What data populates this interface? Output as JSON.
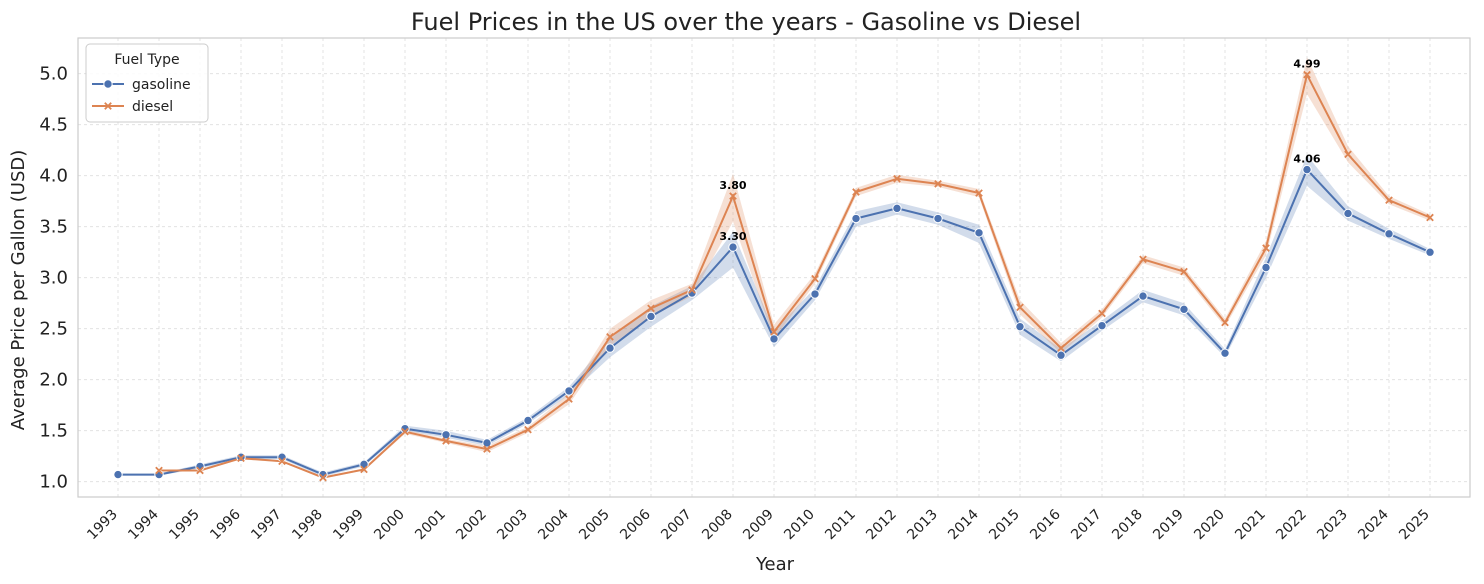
{
  "chart_data": {
    "type": "line",
    "title": "Fuel Prices in the US over the years - Gasoline vs Diesel",
    "xlabel": "Year",
    "ylabel": "Average Price per Gallon (USD)",
    "ylim": [
      0.85,
      5.35
    ],
    "yticks": [
      1.0,
      1.5,
      2.0,
      2.5,
      3.0,
      3.5,
      4.0,
      4.5,
      5.0
    ],
    "grid": true,
    "legend": {
      "title": "Fuel Type",
      "placement": "top-left"
    },
    "x": [
      1993,
      1994,
      1995,
      1996,
      1997,
      1998,
      1999,
      2000,
      2001,
      2002,
      2003,
      2004,
      2005,
      2006,
      2007,
      2008,
      2009,
      2010,
      2011,
      2012,
      2013,
      2014,
      2015,
      2016,
      2017,
      2018,
      2019,
      2020,
      2021,
      2022,
      2023,
      2024,
      2025
    ],
    "series": [
      {
        "name": "gasoline",
        "color": "#4c72b0",
        "marker": "circle",
        "values": [
          1.07,
          1.07,
          1.15,
          1.24,
          1.24,
          1.07,
          1.17,
          1.52,
          1.46,
          1.38,
          1.6,
          1.89,
          2.31,
          2.62,
          2.85,
          3.3,
          2.4,
          2.84,
          3.58,
          3.68,
          3.58,
          3.44,
          2.52,
          2.24,
          2.53,
          2.82,
          2.69,
          2.26,
          3.1,
          4.06,
          3.63,
          3.43,
          3.25
        ],
        "band_low": [
          1.06,
          1.06,
          1.13,
          1.22,
          1.22,
          1.05,
          1.15,
          1.5,
          1.43,
          1.35,
          1.57,
          1.85,
          2.22,
          2.52,
          2.78,
          3.1,
          2.32,
          2.78,
          3.5,
          3.62,
          3.52,
          3.34,
          2.44,
          2.18,
          2.48,
          2.76,
          2.63,
          2.22,
          3.0,
          3.9,
          3.56,
          3.38,
          3.22
        ],
        "band_high": [
          1.08,
          1.08,
          1.17,
          1.26,
          1.26,
          1.09,
          1.19,
          1.55,
          1.5,
          1.41,
          1.63,
          1.93,
          2.4,
          2.72,
          2.92,
          3.45,
          2.48,
          2.9,
          3.65,
          3.74,
          3.64,
          3.52,
          2.6,
          2.3,
          2.58,
          2.88,
          2.75,
          2.3,
          3.2,
          4.2,
          3.7,
          3.48,
          3.28
        ]
      },
      {
        "name": "diesel",
        "color": "#dd8452",
        "marker": "x",
        "values": [
          null,
          1.11,
          1.11,
          1.23,
          1.2,
          1.04,
          1.12,
          1.49,
          1.4,
          1.32,
          1.51,
          1.81,
          2.42,
          2.7,
          2.88,
          3.8,
          2.47,
          2.99,
          3.84,
          3.97,
          3.92,
          3.83,
          2.71,
          2.31,
          2.65,
          3.18,
          3.06,
          2.56,
          3.29,
          4.99,
          4.21,
          3.76,
          3.59
        ],
        "band_low": [
          null,
          1.1,
          1.1,
          1.22,
          1.19,
          1.03,
          1.11,
          1.47,
          1.38,
          1.29,
          1.48,
          1.76,
          2.33,
          2.62,
          2.82,
          3.55,
          2.4,
          2.94,
          3.8,
          3.93,
          3.89,
          3.79,
          2.64,
          2.26,
          2.61,
          3.14,
          3.02,
          2.52,
          3.22,
          4.8,
          4.13,
          3.72,
          3.56
        ],
        "band_high": [
          null,
          1.12,
          1.12,
          1.24,
          1.21,
          1.05,
          1.13,
          1.51,
          1.42,
          1.35,
          1.54,
          1.86,
          2.5,
          2.78,
          2.94,
          4.02,
          2.54,
          3.04,
          3.88,
          4.01,
          3.95,
          3.87,
          2.78,
          2.36,
          2.69,
          3.22,
          3.1,
          2.6,
          3.36,
          5.16,
          4.29,
          3.8,
          3.62
        ]
      }
    ],
    "annotations": [
      {
        "x": 2008,
        "y": 3.3,
        "label": "3.30"
      },
      {
        "x": 2008,
        "y": 3.8,
        "label": "3.80"
      },
      {
        "x": 2022,
        "y": 4.06,
        "label": "4.06"
      },
      {
        "x": 2022,
        "y": 4.99,
        "label": "4.99"
      }
    ]
  }
}
